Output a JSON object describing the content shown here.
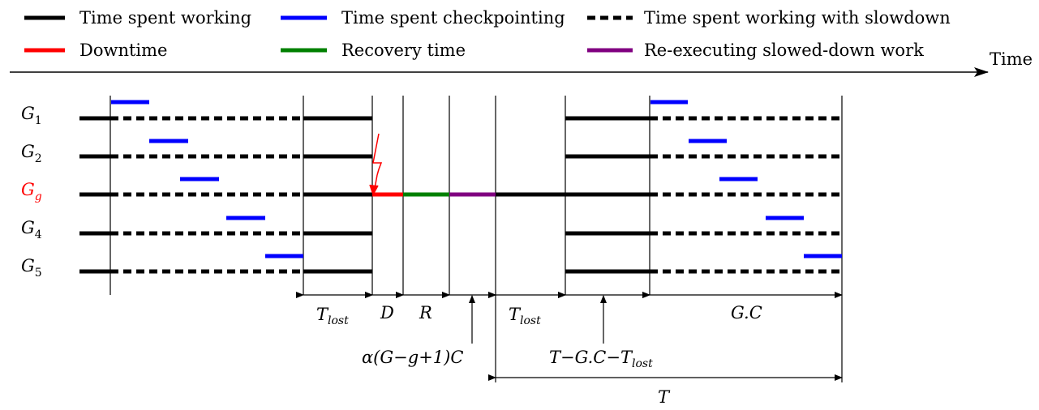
{
  "legend": [
    {
      "label": "Time spent working",
      "color": "#000000",
      "style": "solid"
    },
    {
      "label": "Time spent checkpointing",
      "color": "#0000ff",
      "style": "solid"
    },
    {
      "label": "Time spent working with slowdown",
      "color": "#000000",
      "style": "dashed"
    },
    {
      "label": "Downtime",
      "color": "#ff0000",
      "style": "solid"
    },
    {
      "label": "Recovery time",
      "color": "#008000",
      "style": "solid"
    },
    {
      "label": "Re-executing slowed-down work",
      "color": "#800080",
      "style": "solid"
    }
  ],
  "time_axis_label": "Time",
  "groups": [
    {
      "name": "G",
      "sub": "1",
      "color": "#000000"
    },
    {
      "name": "G",
      "sub": "2",
      "color": "#000000"
    },
    {
      "name": "G",
      "sub": "g",
      "color": "#ff0000"
    },
    {
      "name": "G",
      "sub": "4",
      "color": "#000000"
    },
    {
      "name": "G",
      "sub": "5",
      "color": "#000000"
    }
  ],
  "intervals": {
    "t_lost_1": {
      "base": "T",
      "sub": "lost"
    },
    "d": "D",
    "r": "R",
    "t_lost_2": {
      "base": "T",
      "sub": "lost"
    },
    "gc": "G.C",
    "total": "T"
  },
  "annotations": {
    "alpha": "α(G−g+1)C",
    "remaining": {
      "pre": "T−G.C−",
      "base": "T",
      "sub": "lost"
    }
  }
}
